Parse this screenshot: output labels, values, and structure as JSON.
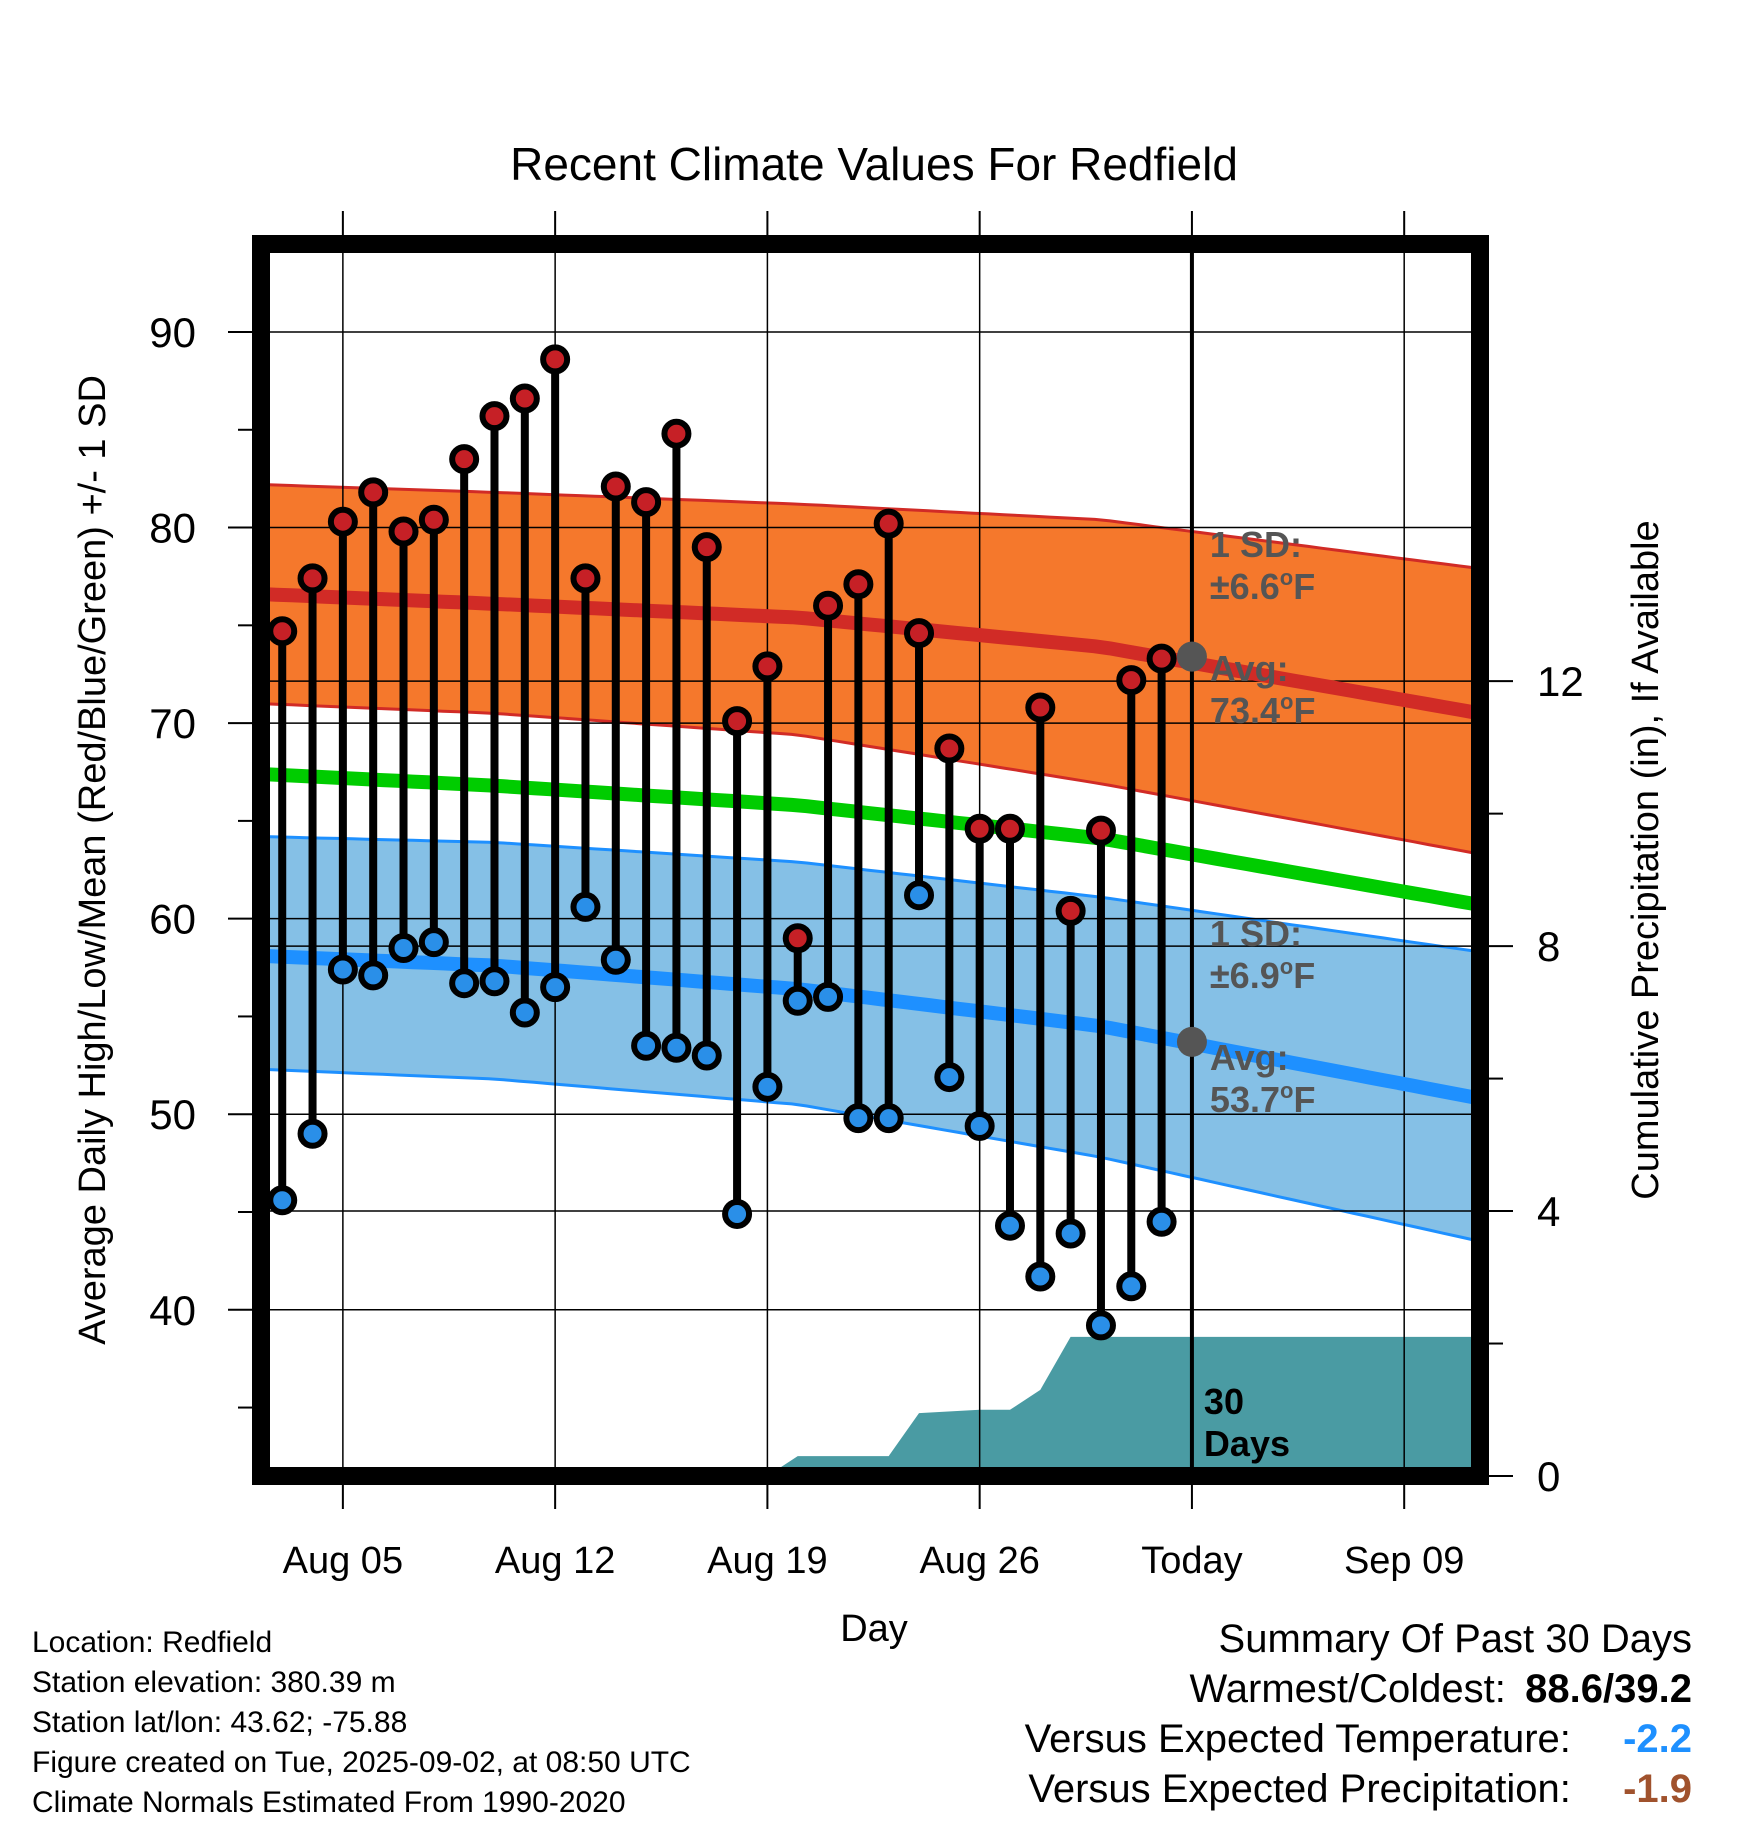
{
  "chart_data": {
    "type": "line",
    "title": "Recent Climate Values For Redfield",
    "xlabel": "Day",
    "ylabel_left": "Average Daily High/Low/Mean (Red/Blue/Green) +/- 1 SD",
    "ylabel_right": "Cumulative Precipitation (in), If Available",
    "x_tick_labels": [
      "Aug 05",
      "Aug 12",
      "Aug 19",
      "Aug 26",
      "Today",
      "Sep 09"
    ],
    "x_tick_days": [
      5,
      12,
      19,
      26,
      33,
      40
    ],
    "xlim_days": [
      2.3,
      42.5
    ],
    "today_day": 33,
    "ylim_left": [
      31.5,
      94.5
    ],
    "y_ticks_left": [
      40,
      50,
      60,
      70,
      80,
      90
    ],
    "ylim_right": [
      0,
      18.6
    ],
    "y_ticks_right": [
      0,
      4,
      8,
      12
    ],
    "grid": true,
    "daily": {
      "days": [
        3,
        4,
        5,
        6,
        7,
        8,
        9,
        10,
        11,
        12,
        13,
        14,
        15,
        16,
        17,
        18,
        19,
        20,
        21,
        22,
        23,
        24,
        25,
        26,
        27,
        28,
        29,
        30,
        31,
        32
      ],
      "high": [
        74.7,
        77.4,
        80.3,
        81.8,
        79.8,
        80.4,
        83.5,
        85.7,
        86.6,
        88.6,
        77.4,
        82.1,
        81.3,
        84.8,
        79.0,
        70.1,
        72.9,
        59.0,
        76.0,
        77.1,
        80.2,
        74.6,
        68.7,
        64.6,
        64.6,
        70.8,
        60.4,
        64.5,
        72.2,
        73.3
      ],
      "low": [
        45.6,
        49.0,
        57.4,
        57.1,
        58.5,
        58.8,
        56.7,
        56.8,
        55.2,
        56.5,
        60.6,
        57.9,
        53.5,
        53.4,
        53.0,
        44.9,
        51.4,
        55.8,
        56.0,
        49.8,
        49.8,
        61.2,
        51.9,
        49.4,
        44.3,
        41.7,
        43.9,
        39.2,
        41.2,
        44.5
      ]
    },
    "normals": {
      "days": [
        2.3,
        10,
        20,
        30,
        42.5
      ],
      "avg_high": [
        76.6,
        76.1,
        75.4,
        73.9,
        70.5
      ],
      "high_sd_upper": [
        82.2,
        81.8,
        81.2,
        80.4,
        77.9
      ],
      "high_sd_lower": [
        71.0,
        70.5,
        69.4,
        66.9,
        63.3
      ],
      "avg_mean": [
        67.4,
        66.8,
        65.8,
        64.1,
        60.7
      ],
      "avg_low": [
        58.1,
        57.6,
        56.4,
        54.5,
        50.8
      ],
      "low_sd_upper": [
        64.2,
        63.9,
        62.9,
        61.1,
        58.3
      ],
      "low_sd_lower": [
        52.3,
        51.8,
        50.5,
        47.8,
        43.5
      ]
    },
    "precipitation": {
      "days": [
        19,
        20,
        23,
        24,
        26,
        27,
        28,
        29,
        42.5
      ],
      "cumulative_in": [
        0,
        0.3,
        0.3,
        0.95,
        1.0,
        1.0,
        1.3,
        2.1,
        2.1
      ]
    },
    "high_annotation": {
      "sd_label": "1 SD:",
      "sd_value": "±6.6",
      "avg_label": "Avg:",
      "avg_value": "73.4",
      "unit": "F",
      "degree": "o"
    },
    "low_annotation": {
      "sd_label": "1 SD:",
      "sd_value": "±6.9",
      "avg_label": "Avg:",
      "avg_value": "53.7",
      "unit": "F",
      "degree": "o"
    },
    "precip_label_1": "30",
    "precip_label_2": "Days",
    "colors": {
      "high_band": "#F5782C",
      "high_line": "#D12B26",
      "mean_line": "#00CC00",
      "low_band": "#85C0E6",
      "low_line": "#1E90FF",
      "precip": "#4A9BA3",
      "annotation": "#555555",
      "high_dot": "#C62026",
      "low_dot": "#2A8FE8"
    }
  },
  "info": {
    "location": "Location: Redfield",
    "elevation": "Station elevation: 380.39 m",
    "latlon": "Station lat/lon: 43.62; -75.88",
    "created": "Figure created on Tue, 2025-09-02, at 08:50 UTC",
    "normals": "Climate Normals Estimated From 1990-2020"
  },
  "summary": {
    "title": "Summary Of Past 30 Days",
    "warm_cold_label": "Warmest/Coldest:",
    "warm_cold_value": "88.6/39.2",
    "temp_label": "Versus Expected Temperature:",
    "temp_value": "-2.2",
    "temp_color": "#1E90FF",
    "precip_label": "Versus Expected Precipitation:",
    "precip_value": "-1.9",
    "precip_color": "#A0522D"
  }
}
